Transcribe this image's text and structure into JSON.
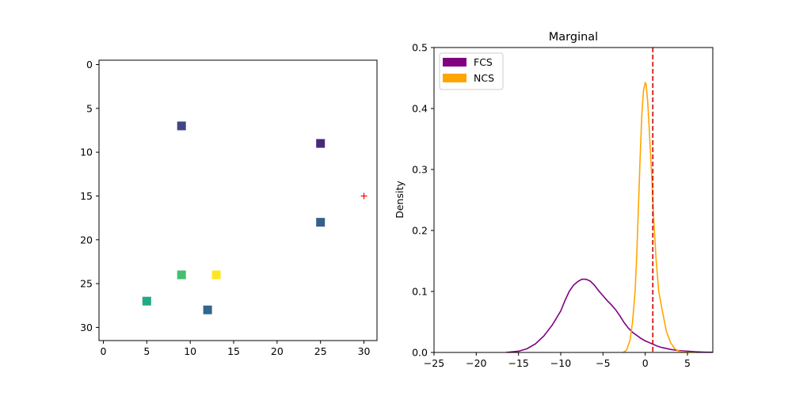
{
  "chart_data": [
    {
      "type": "scatter",
      "title": "",
      "xlabel": "",
      "ylabel": "",
      "xlim": [
        -0.5,
        31.5
      ],
      "ylim": [
        31.5,
        -0.5
      ],
      "y_inverted": true,
      "xticks": [
        0,
        5,
        10,
        15,
        20,
        25,
        30
      ],
      "yticks": [
        0,
        5,
        10,
        15,
        20,
        25,
        30
      ],
      "tick_labels_x": [
        "0",
        "5",
        "10",
        "15",
        "20",
        "25",
        "30"
      ],
      "tick_labels_y": [
        "0",
        "5",
        "10",
        "15",
        "20",
        "25",
        "30"
      ],
      "grid": false,
      "series": [
        {
          "marker": "square",
          "points": [
            {
              "x": 9,
              "y": 7,
              "color": "#414487"
            },
            {
              "x": 25,
              "y": 9,
              "color": "#482878"
            },
            {
              "x": 25,
              "y": 18,
              "color": "#355f8d"
            },
            {
              "x": 9,
              "y": 24,
              "color": "#44bf70"
            },
            {
              "x": 13,
              "y": 24,
              "color": "#fde725"
            },
            {
              "x": 5,
              "y": 27,
              "color": "#22a884"
            },
            {
              "x": 12,
              "y": 28,
              "color": "#31668e"
            }
          ]
        },
        {
          "marker": "plus",
          "points": [
            {
              "x": 30,
              "y": 15,
              "color": "#ff0000"
            }
          ]
        }
      ]
    },
    {
      "type": "line",
      "title": "Marginal",
      "xlabel": "",
      "ylabel": "Density",
      "xlim": [
        -25,
        8
      ],
      "ylim": [
        0,
        0.5
      ],
      "xticks": [
        -25,
        -20,
        -15,
        -10,
        -5,
        0,
        5
      ],
      "yticks": [
        0.0,
        0.1,
        0.2,
        0.3,
        0.4,
        0.5
      ],
      "tick_labels_x": [
        "−25",
        "−20",
        "−15",
        "−10",
        "−5",
        "0",
        "5"
      ],
      "tick_labels_y": [
        "0.0",
        "0.1",
        "0.2",
        "0.3",
        "0.4",
        "0.5"
      ],
      "grid": false,
      "legend_position": "top-left",
      "vline": {
        "x": 0.9,
        "color": "#cc0000",
        "style": "dashed"
      },
      "series": [
        {
          "name": "FCS",
          "color": "#800080",
          "x": [
            -16.5,
            -15,
            -14,
            -13,
            -12,
            -11,
            -10,
            -9.5,
            -9,
            -8.5,
            -8,
            -7.5,
            -7,
            -6.5,
            -6,
            -5.5,
            -5,
            -4.5,
            -4,
            -3.5,
            -3,
            -2.5,
            -2,
            -1.5,
            -1,
            -0.5,
            0,
            0.5,
            1,
            1.5,
            2,
            3,
            4,
            5,
            6,
            7,
            8
          ],
          "y": [
            0.0,
            0.002,
            0.006,
            0.014,
            0.027,
            0.045,
            0.068,
            0.085,
            0.1,
            0.11,
            0.116,
            0.12,
            0.12,
            0.117,
            0.11,
            0.101,
            0.093,
            0.085,
            0.078,
            0.07,
            0.06,
            0.049,
            0.04,
            0.033,
            0.028,
            0.023,
            0.019,
            0.016,
            0.013,
            0.01,
            0.008,
            0.005,
            0.003,
            0.002,
            0.001,
            0.0005,
            0.0002
          ]
        },
        {
          "name": "NCS",
          "color": "#ffa500",
          "x": [
            -2.6,
            -2.2,
            -1.8,
            -1.5,
            -1.2,
            -1,
            -0.8,
            -0.6,
            -0.4,
            -0.2,
            0,
            0.1,
            0.3,
            0.5,
            0.8,
            1,
            1.3,
            1.6,
            2,
            2.5,
            3,
            3.5,
            4,
            5,
            6
          ],
          "y": [
            0.0,
            0.004,
            0.02,
            0.05,
            0.1,
            0.16,
            0.24,
            0.32,
            0.39,
            0.43,
            0.442,
            0.44,
            0.41,
            0.36,
            0.28,
            0.22,
            0.15,
            0.1,
            0.07,
            0.035,
            0.016,
            0.006,
            0.002,
            0.0005,
            0.0
          ]
        }
      ]
    }
  ]
}
